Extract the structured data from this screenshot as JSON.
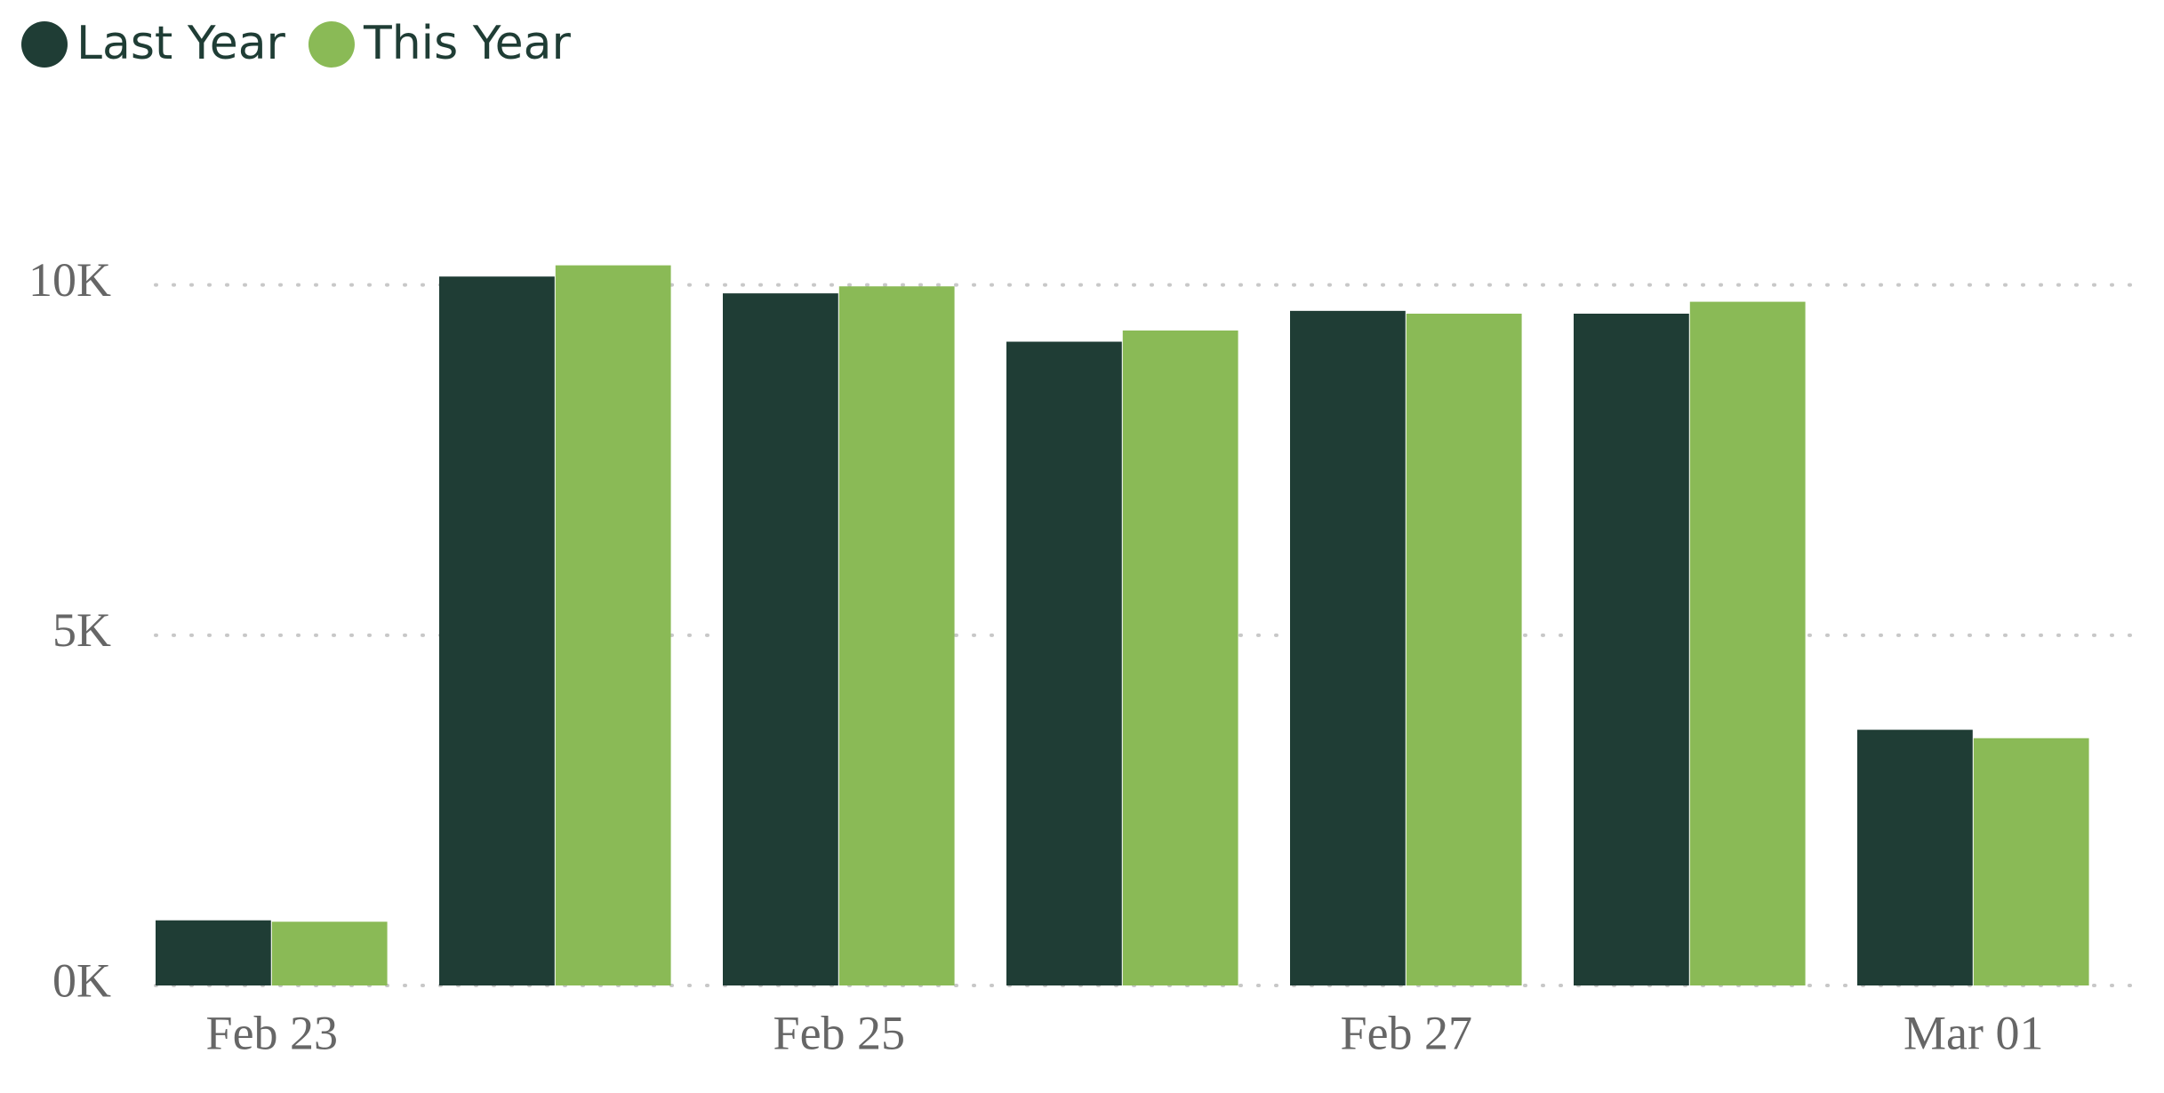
{
  "chart_data": {
    "type": "bar",
    "categories": [
      "Feb 23",
      null,
      "Feb 25",
      null,
      "Feb 27",
      null,
      "Mar 01"
    ],
    "series": [
      {
        "name": "Last Year",
        "color": "#1f3d35",
        "values": [
          930,
          10120,
          9880,
          9190,
          9630,
          9590,
          3650
        ]
      },
      {
        "name": "This Year",
        "color": "#8aba56",
        "values": [
          910,
          10280,
          9980,
          9350,
          9590,
          9760,
          3530
        ]
      }
    ],
    "ylim": [
      0,
      12000
    ],
    "yticks": [
      {
        "value": 0,
        "label": "0K"
      },
      {
        "value": 5000,
        "label": "5K"
      },
      {
        "value": 10000,
        "label": "10K"
      }
    ],
    "grid": true,
    "legend": "top-left"
  }
}
